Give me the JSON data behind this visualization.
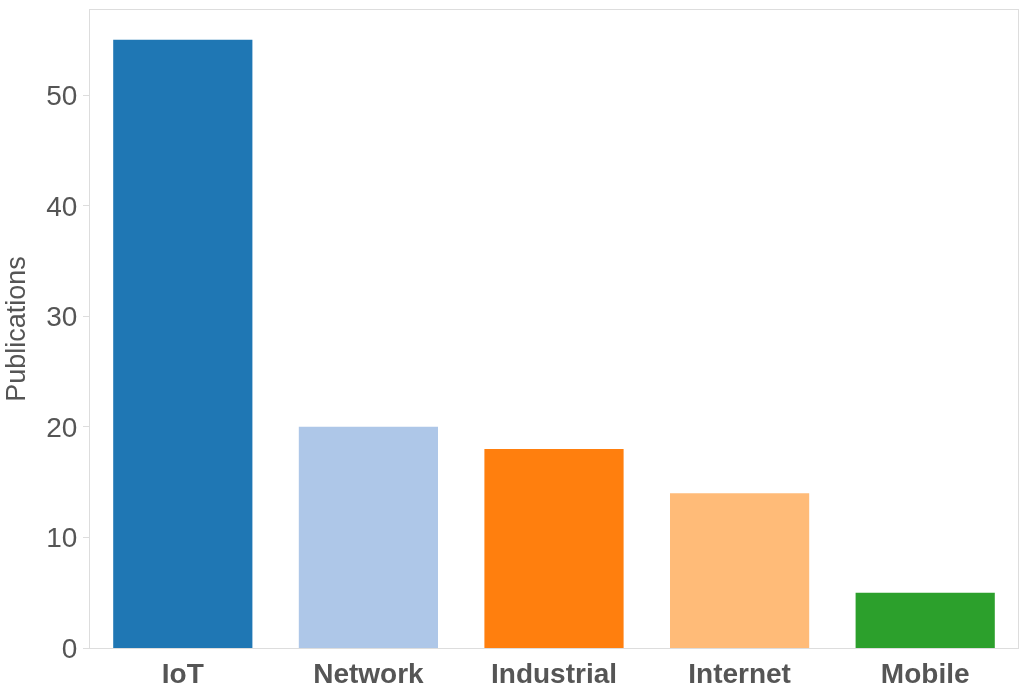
{
  "chart_data": {
    "type": "bar",
    "ylabel": "Publications",
    "categories": [
      "IoT",
      "Network",
      "Industrial",
      "Internet",
      "Mobile"
    ],
    "values": [
      55,
      20,
      18,
      14,
      5
    ],
    "colors": [
      "#1f77b4",
      "#aec7e8",
      "#ff7f0e",
      "#ffbb78",
      "#2ca02c"
    ],
    "ylim": [
      0,
      57.7
    ],
    "yticks": [
      0,
      10,
      20,
      30,
      40,
      50
    ],
    "grid": false
  }
}
